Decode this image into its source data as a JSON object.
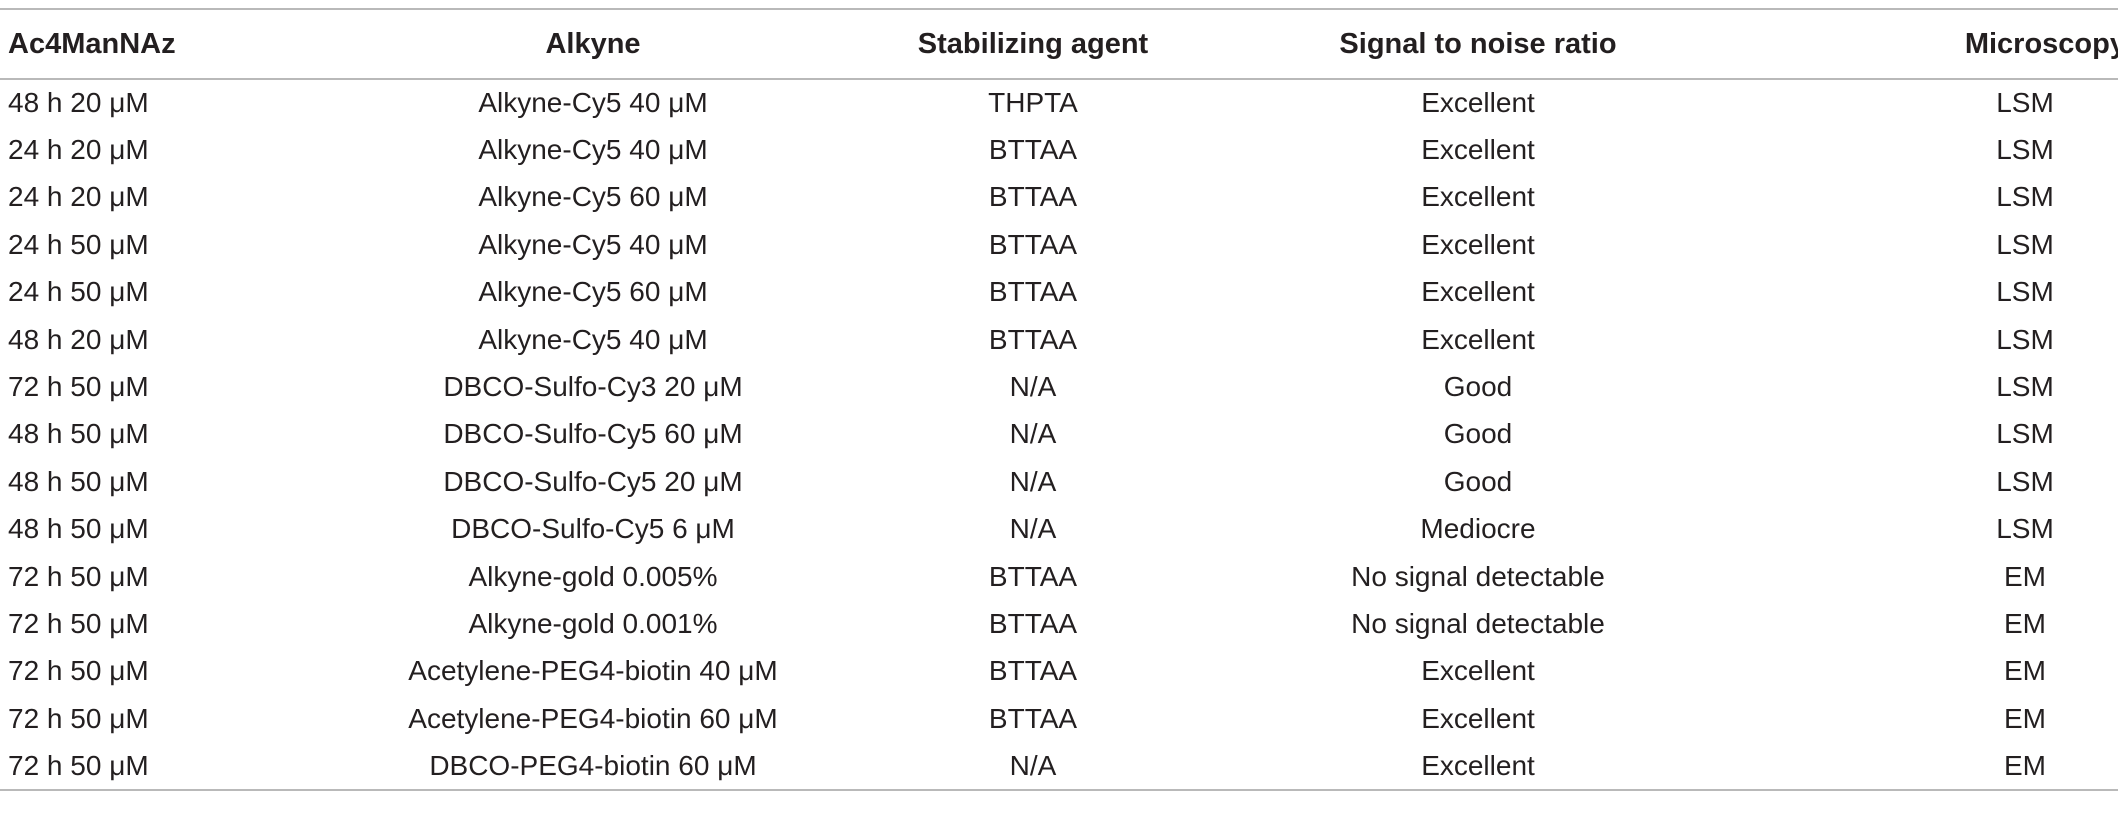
{
  "table": {
    "headers": [
      "Ac4ManNAz",
      "Alkyne",
      "Stabilizing agent",
      "Signal to noise ratio",
      "Microscopy"
    ],
    "rows": [
      [
        "48 h 20 μM",
        "Alkyne-Cy5 40 μM",
        "THPTA",
        "Excellent",
        "LSM"
      ],
      [
        "24 h 20 μM",
        "Alkyne-Cy5 40 μM",
        "BTTAA",
        "Excellent",
        "LSM"
      ],
      [
        "24 h 20 μM",
        "Alkyne-Cy5 60 μM",
        "BTTAA",
        "Excellent",
        "LSM"
      ],
      [
        "24 h 50 μM",
        "Alkyne-Cy5 40 μM",
        "BTTAA",
        "Excellent",
        "LSM"
      ],
      [
        "24 h 50 μM",
        "Alkyne-Cy5 60 μM",
        "BTTAA",
        "Excellent",
        "LSM"
      ],
      [
        "48 h 20 μM",
        "Alkyne-Cy5 40 μM",
        "BTTAA",
        "Excellent",
        "LSM"
      ],
      [
        "72 h 50 μM",
        "DBCO-Sulfo-Cy3 20 μM",
        "N/A",
        "Good",
        "LSM"
      ],
      [
        "48 h 50 μM",
        "DBCO-Sulfo-Cy5 60 μM",
        "N/A",
        "Good",
        "LSM"
      ],
      [
        "48 h 50 μM",
        "DBCO-Sulfo-Cy5 20 μM",
        "N/A",
        "Good",
        "LSM"
      ],
      [
        "48 h 50 μM",
        "DBCO-Sulfo-Cy5 6 μM",
        "N/A",
        "Mediocre",
        "LSM"
      ],
      [
        "72 h 50 μM",
        "Alkyne-gold 0.005%",
        "BTTAA",
        "No signal detectable",
        "EM"
      ],
      [
        "72 h 50 μM",
        "Alkyne-gold 0.001%",
        "BTTAA",
        "No signal detectable",
        "EM"
      ],
      [
        "72 h 50 μM",
        "Acetylene-PEG4-biotin 40 μM",
        "BTTAA",
        "Excellent",
        "EM"
      ],
      [
        "72 h 50 μM",
        "Acetylene-PEG4-biotin 60 μM",
        "BTTAA",
        "Excellent",
        "EM"
      ],
      [
        "72 h 50 μM",
        "DBCO-PEG4-biotin 60 μM",
        "N/A",
        "Excellent",
        "EM"
      ]
    ]
  }
}
